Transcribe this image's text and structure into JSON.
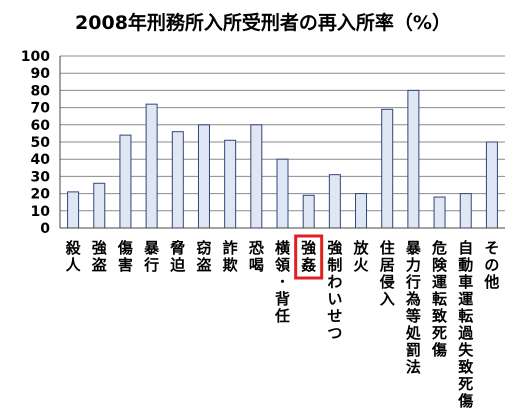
{
  "chart_data": {
    "type": "bar",
    "title": "2008年刑務所入所受刑者の再入所率（%）",
    "categories": [
      "殺人",
      "強盗",
      "傷害",
      "暴行",
      "脅迫",
      "窃盗",
      "詐欺",
      "恐喝",
      "横領･背任",
      "強姦",
      "強制わいせつ",
      "放火",
      "住居侵入",
      "暴力行為等処罰法",
      "危険運転致死傷",
      "自動車運転過失致死傷",
      "その他"
    ],
    "values": [
      21,
      26,
      54,
      72,
      56,
      60,
      51,
      60,
      40,
      19,
      31,
      20,
      69,
      80,
      18,
      20,
      50
    ],
    "ylim": [
      0,
      100
    ],
    "yticks": [
      "0",
      "10",
      "20",
      "30",
      "40",
      "50",
      "60",
      "70",
      "80",
      "90",
      "100"
    ],
    "highlighted_category": "強姦",
    "highlight_color": "#e02020",
    "bar_fill": "#dfe7f5",
    "bar_stroke": "#33447a",
    "grid": true,
    "legend": "none"
  }
}
